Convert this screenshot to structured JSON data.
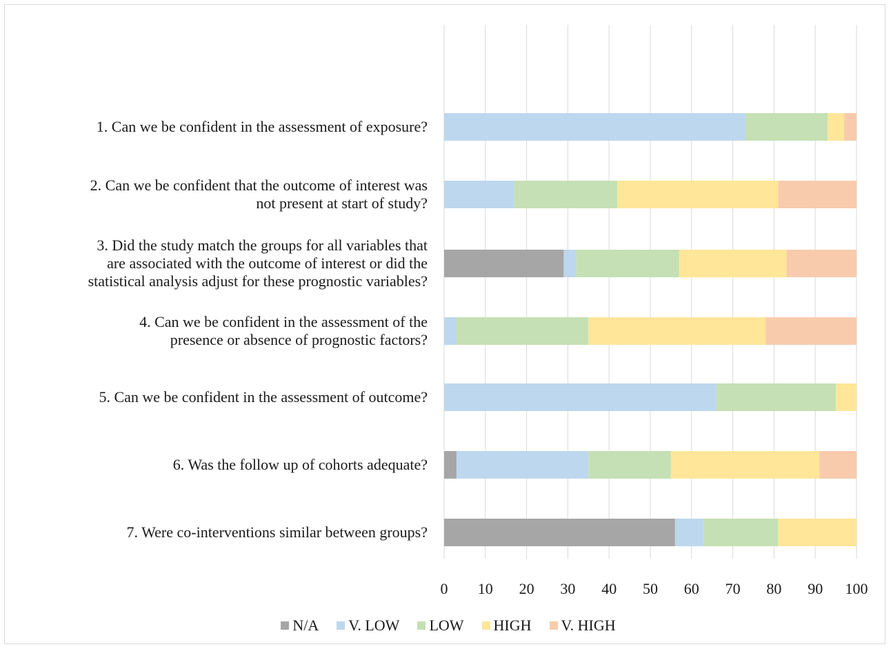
{
  "chart_data": {
    "type": "bar",
    "orientation": "horizontal",
    "stacked": true,
    "categories": [
      "1. Can we be confident in the assessment of exposure?",
      "2. Can we be confident that the outcome of interest was not present at start of study?",
      "3. Did the study match the groups for all variables that are associated with the outcome of interest or did the statistical analysis adjust for these prognostic variables?",
      "4. Can we be confident in the assessment of the presence or absence of prognostic factors?",
      "5. Can we be confident in the assessment of outcome?",
      "6. Was the follow up of cohorts adequate?",
      "7. Were co-interventions similar between groups?"
    ],
    "category_lines": [
      [
        "1. Can we be confident in the assessment of exposure?"
      ],
      [
        "2. Can we be confident that the outcome of interest was",
        "not present at start of study?"
      ],
      [
        "3. Did the study match the groups for all variables that",
        "are associated with the outcome of interest or did the",
        "statistical analysis adjust for these prognostic variables?"
      ],
      [
        "4. Can we be confident in the assessment of the",
        "presence or absence of prognostic factors?"
      ],
      [
        "5. Can we be confident in the assessment of outcome?"
      ],
      [
        "6. Was the follow up of cohorts adequate?"
      ],
      [
        "7. Were co-interventions similar between groups?"
      ]
    ],
    "series": [
      {
        "name": "N/A",
        "color": "#a6a6a6",
        "values": [
          0,
          0,
          29,
          0,
          0,
          3,
          56
        ]
      },
      {
        "name": "V. LOW",
        "color": "#bdd7ee",
        "values": [
          73,
          17,
          3,
          3,
          66,
          32,
          7
        ]
      },
      {
        "name": "LOW",
        "color": "#c5e0b4",
        "values": [
          20,
          25,
          25,
          32,
          29,
          20,
          18
        ]
      },
      {
        "name": "HIGH",
        "color": "#ffe699",
        "values": [
          4,
          39,
          26,
          43,
          5,
          36,
          19
        ]
      },
      {
        "name": "V. HIGH",
        "color": "#f8cbad",
        "values": [
          3,
          19,
          17,
          22,
          0,
          9,
          0
        ]
      }
    ],
    "xlim": [
      0,
      100
    ],
    "xticks": [
      "0",
      "10",
      "20",
      "30",
      "40",
      "50",
      "60",
      "70",
      "80",
      "90",
      "100"
    ],
    "grid": true,
    "legend_position": "bottom",
    "title": "",
    "xlabel": "",
    "ylabel": ""
  }
}
